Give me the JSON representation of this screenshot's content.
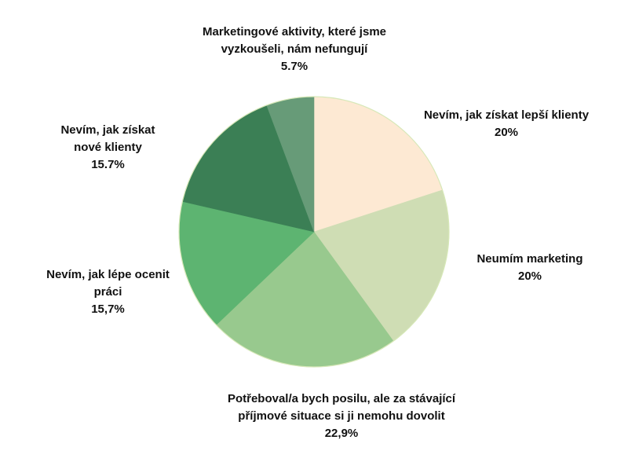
{
  "chart_data": {
    "type": "pie",
    "title": "",
    "start_angle_deg": 0,
    "direction": "clockwise",
    "slices": [
      {
        "label_lines": [
          "Nevím, jak získat lepší klienty"
        ],
        "value_label": "20%",
        "value": 20,
        "color": "#fde9d3"
      },
      {
        "label_lines": [
          "Neumím marketing"
        ],
        "value_label": "20%",
        "value": 20,
        "color": "#cfddb4"
      },
      {
        "label_lines": [
          "Potřeboval/a bych posilu, ale za stávající",
          "příjmové situace si ji nemohu dovolit"
        ],
        "value_label": "22,9%",
        "value": 22.9,
        "color": "#98c98e"
      },
      {
        "label_lines": [
          "Nevím, jak lépe ocenit",
          "práci"
        ],
        "value_label": "15,7%",
        "value": 15.7,
        "color": "#5db471"
      },
      {
        "label_lines": [
          "Nevím, jak získat",
          "nové klienty"
        ],
        "value_label": "15.7%",
        "value": 15.7,
        "color": "#3b7f55"
      },
      {
        "label_lines": [
          "Marketingové aktivity, které jsme",
          "vyzkoušeli, nám nefungují"
        ],
        "value_label": "5.7%",
        "value": 5.7,
        "color": "#679b78"
      }
    ]
  }
}
